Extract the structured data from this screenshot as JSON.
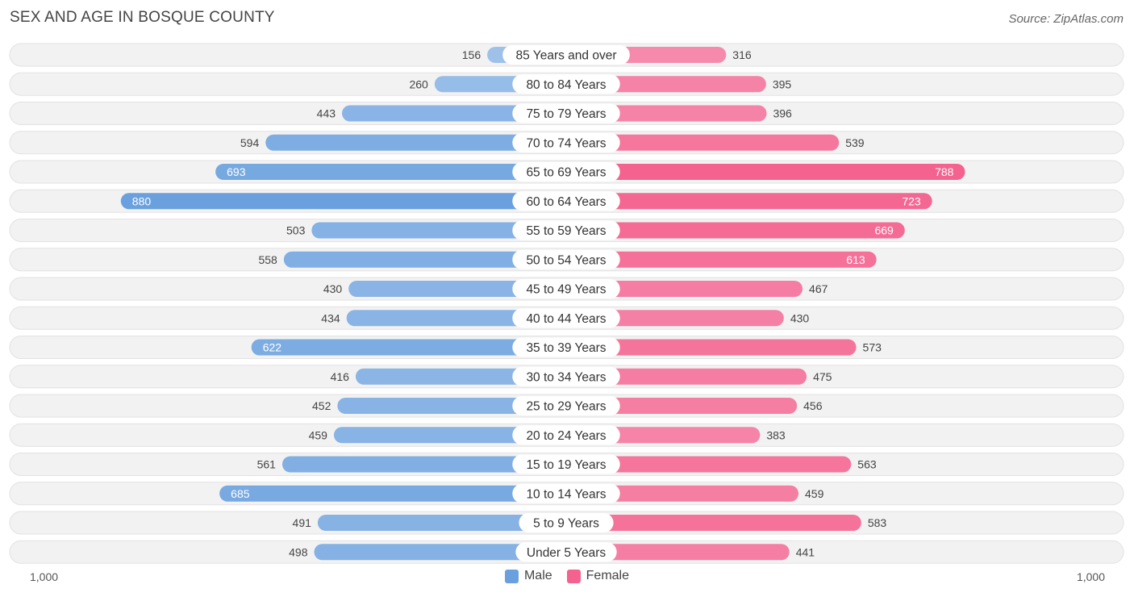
{
  "title": "SEX AND AGE IN BOSQUE COUNTY",
  "source": "Source: ZipAtlas.com",
  "legend": {
    "male_label": "Male",
    "female_label": "Female"
  },
  "colors": {
    "male": "#6aa0de",
    "male_light": "#a9c8ec",
    "female": "#f4628f",
    "female_light": "#f7a4bf"
  },
  "chart_data": {
    "type": "bar",
    "orientation": "horizontal-diverging",
    "title": "SEX AND AGE IN BOSQUE COUNTY",
    "categories": [
      "85 Years and over",
      "80 to 84 Years",
      "75 to 79 Years",
      "70 to 74 Years",
      "65 to 69 Years",
      "60 to 64 Years",
      "55 to 59 Years",
      "50 to 54 Years",
      "45 to 49 Years",
      "40 to 44 Years",
      "35 to 39 Years",
      "30 to 34 Years",
      "25 to 29 Years",
      "20 to 24 Years",
      "15 to 19 Years",
      "10 to 14 Years",
      "5 to 9 Years",
      "Under 5 Years"
    ],
    "series": [
      {
        "name": "Male",
        "values": [
          156,
          260,
          443,
          594,
          693,
          880,
          503,
          558,
          430,
          434,
          622,
          416,
          452,
          459,
          561,
          685,
          491,
          498
        ]
      },
      {
        "name": "Female",
        "values": [
          316,
          395,
          396,
          539,
          788,
          723,
          669,
          613,
          467,
          430,
          573,
          475,
          456,
          383,
          563,
          459,
          583,
          441
        ]
      }
    ],
    "axis_min_label": "1,000",
    "axis_max_label": "1,000",
    "xlim": [
      -1000,
      1000
    ]
  }
}
